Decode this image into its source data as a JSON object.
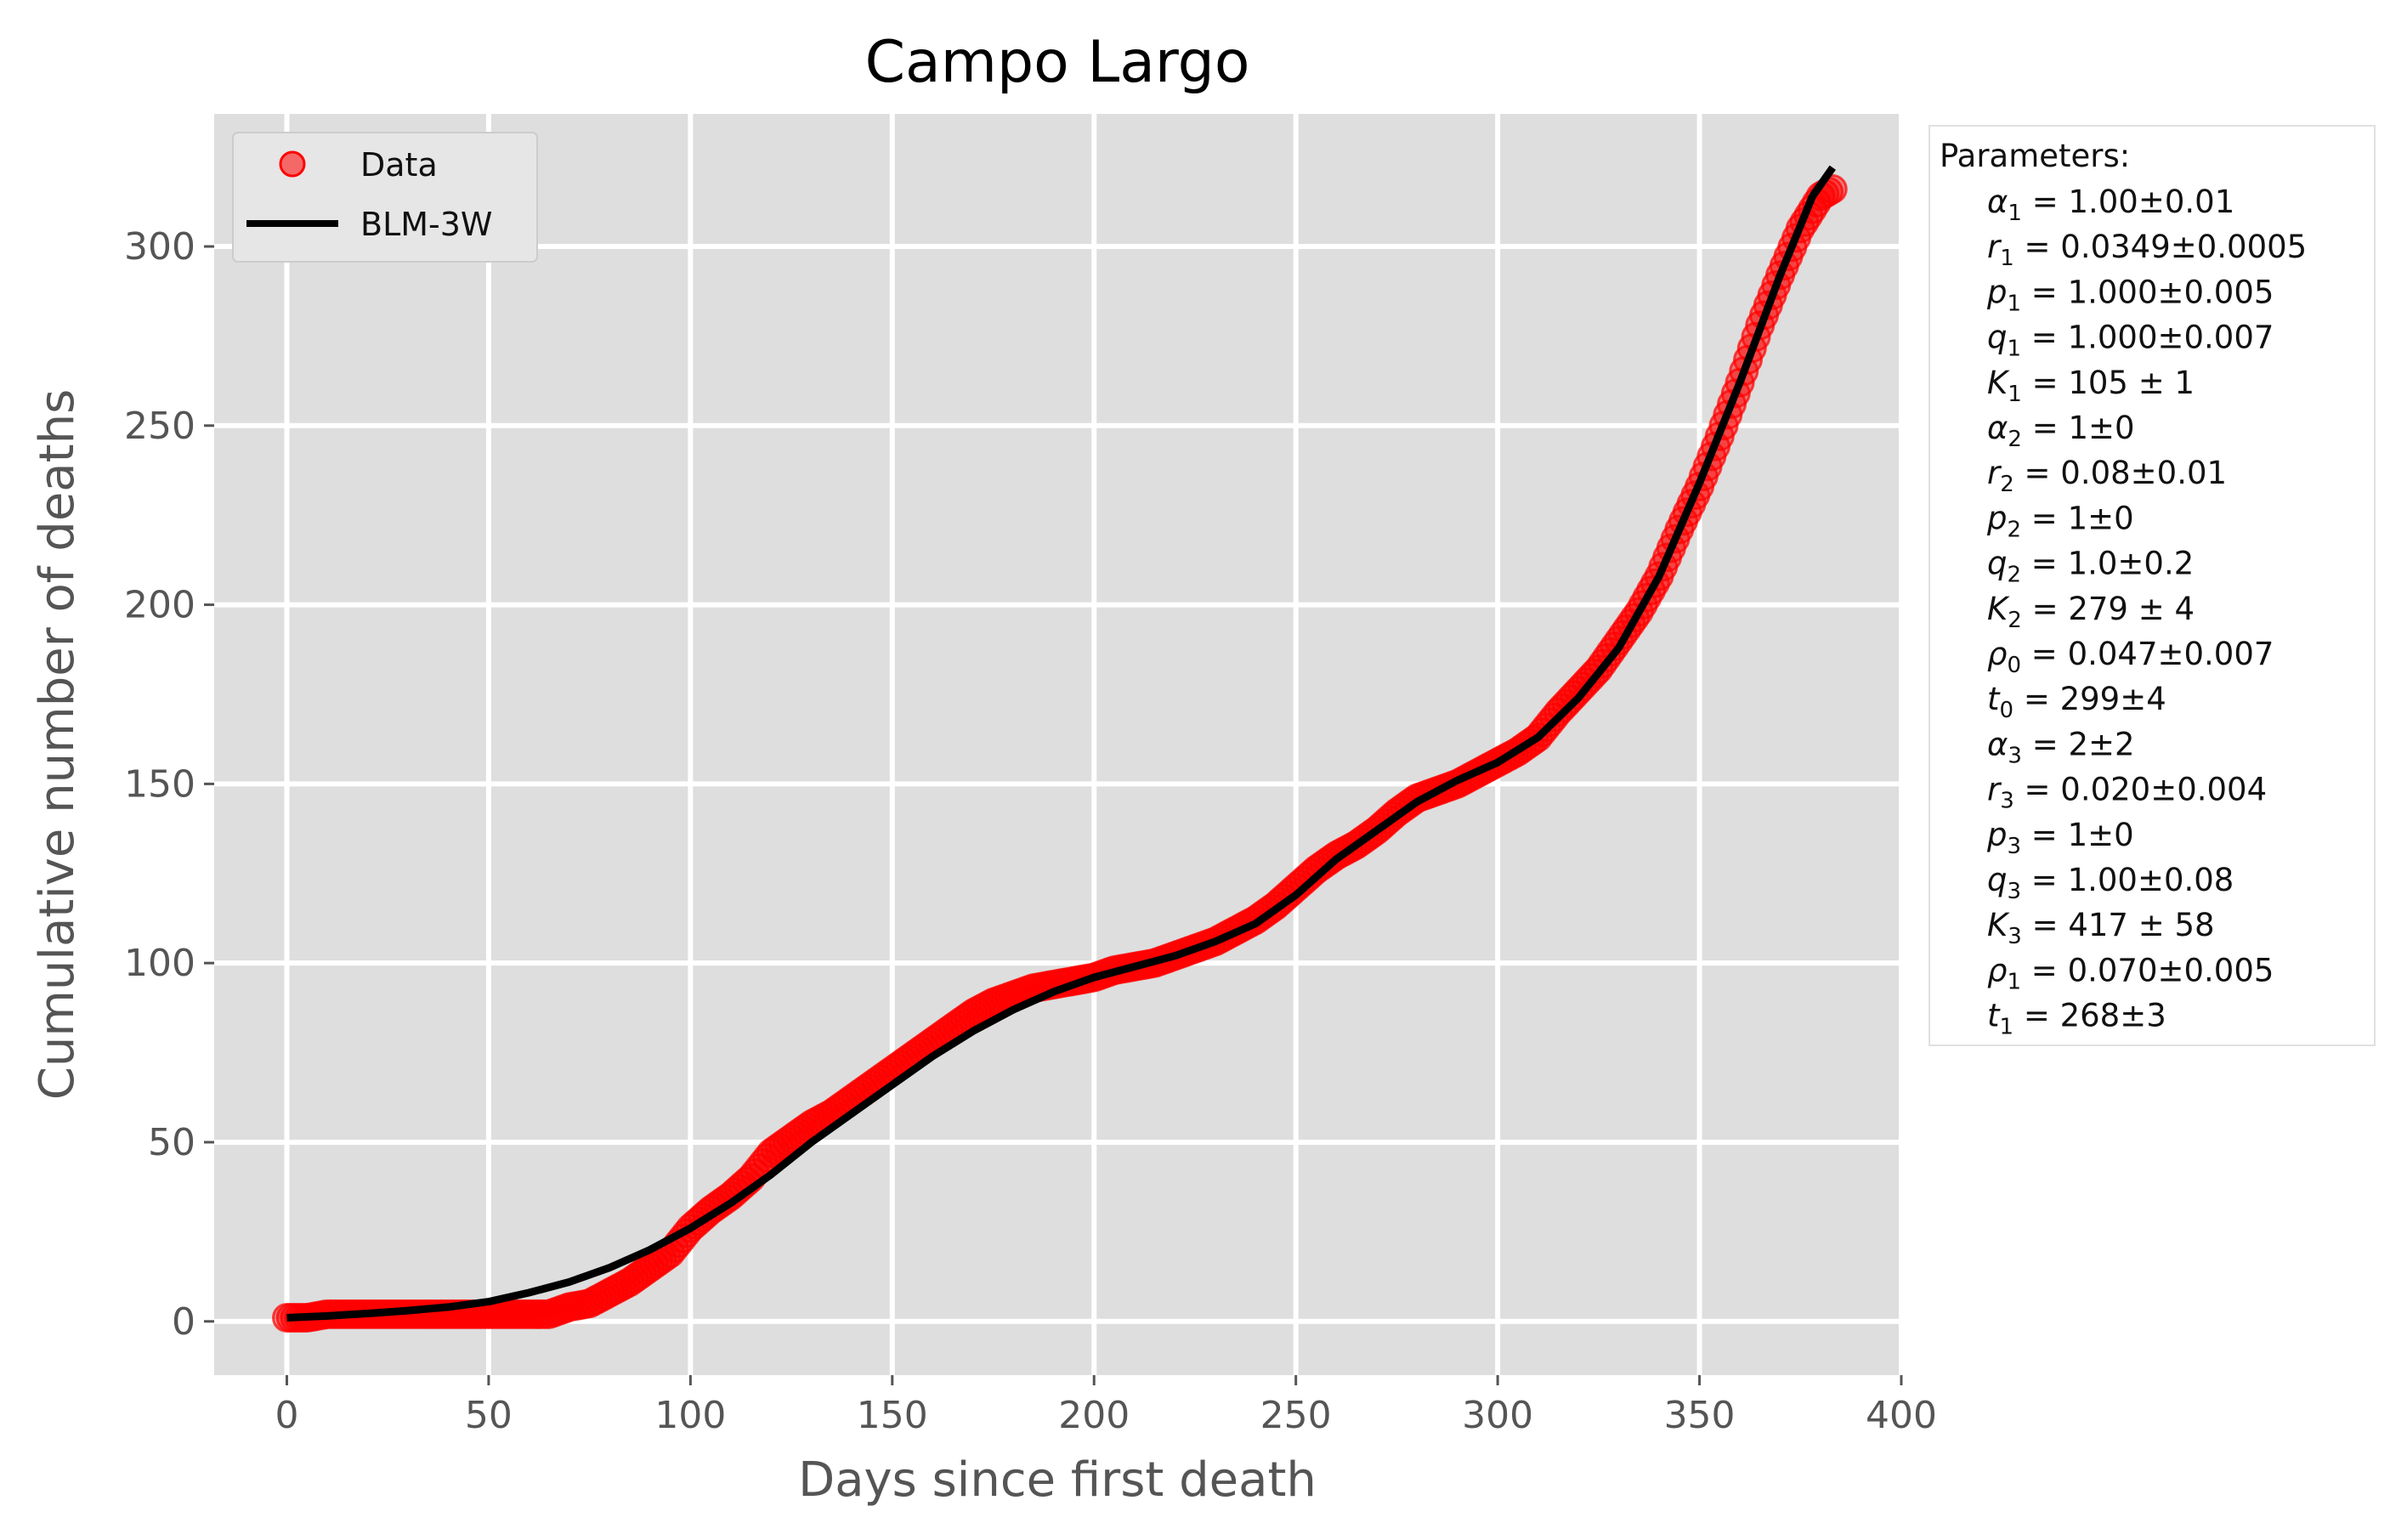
{
  "chart_data": {
    "type": "scatter",
    "title": "Campo Largo",
    "xlabel": "Days since first death",
    "ylabel": "Cumulative number of deaths",
    "xlim": [
      -18,
      400
    ],
    "ylim": [
      -15,
      337
    ],
    "xticks": [
      "0",
      "50",
      "100",
      "150",
      "200",
      "250",
      "300",
      "350",
      "400"
    ],
    "yticks": [
      "0",
      "50",
      "100",
      "150",
      "200",
      "250",
      "300"
    ],
    "grid": true,
    "legend_position": "top-left",
    "series": [
      {
        "name": "Data",
        "kind": "scatter",
        "color": "#ff0000",
        "points": [
          [
            0,
            1
          ],
          [
            5,
            1
          ],
          [
            10,
            2
          ],
          [
            20,
            2
          ],
          [
            30,
            2
          ],
          [
            40,
            2
          ],
          [
            50,
            2
          ],
          [
            60,
            2
          ],
          [
            65,
            2
          ],
          [
            70,
            4
          ],
          [
            75,
            5
          ],
          [
            80,
            8
          ],
          [
            85,
            11
          ],
          [
            90,
            15
          ],
          [
            95,
            19
          ],
          [
            100,
            26
          ],
          [
            105,
            31
          ],
          [
            110,
            35
          ],
          [
            115,
            40
          ],
          [
            120,
            47
          ],
          [
            125,
            51
          ],
          [
            130,
            55
          ],
          [
            135,
            58
          ],
          [
            140,
            62
          ],
          [
            145,
            66
          ],
          [
            150,
            70
          ],
          [
            155,
            74
          ],
          [
            160,
            78
          ],
          [
            165,
            82
          ],
          [
            170,
            86
          ],
          [
            175,
            89
          ],
          [
            180,
            91
          ],
          [
            185,
            93
          ],
          [
            190,
            94
          ],
          [
            195,
            95
          ],
          [
            200,
            96
          ],
          [
            205,
            98
          ],
          [
            210,
            99
          ],
          [
            215,
            100
          ],
          [
            220,
            102
          ],
          [
            225,
            104
          ],
          [
            230,
            106
          ],
          [
            235,
            109
          ],
          [
            240,
            112
          ],
          [
            245,
            116
          ],
          [
            250,
            121
          ],
          [
            255,
            126
          ],
          [
            260,
            130
          ],
          [
            265,
            133
          ],
          [
            270,
            137
          ],
          [
            275,
            142
          ],
          [
            280,
            146
          ],
          [
            285,
            148
          ],
          [
            290,
            150
          ],
          [
            295,
            153
          ],
          [
            300,
            156
          ],
          [
            305,
            159
          ],
          [
            310,
            163
          ],
          [
            315,
            170
          ],
          [
            320,
            176
          ],
          [
            325,
            182
          ],
          [
            330,
            190
          ],
          [
            335,
            198
          ],
          [
            340,
            208
          ],
          [
            345,
            221
          ],
          [
            350,
            233
          ],
          [
            355,
            247
          ],
          [
            360,
            262
          ],
          [
            365,
            278
          ],
          [
            370,
            292
          ],
          [
            375,
            305
          ],
          [
            380,
            314
          ],
          [
            383,
            316
          ]
        ]
      },
      {
        "name": "BLM-3W",
        "kind": "line",
        "color": "#000000",
        "points": [
          [
            0,
            1
          ],
          [
            10,
            1.5
          ],
          [
            20,
            2.2
          ],
          [
            30,
            3
          ],
          [
            40,
            4
          ],
          [
            50,
            5.5
          ],
          [
            60,
            8
          ],
          [
            70,
            11
          ],
          [
            80,
            15
          ],
          [
            90,
            20
          ],
          [
            100,
            26
          ],
          [
            110,
            33
          ],
          [
            120,
            41
          ],
          [
            130,
            50
          ],
          [
            140,
            58
          ],
          [
            150,
            66
          ],
          [
            160,
            74
          ],
          [
            170,
            81
          ],
          [
            180,
            87
          ],
          [
            190,
            92
          ],
          [
            200,
            96
          ],
          [
            210,
            99
          ],
          [
            220,
            102
          ],
          [
            230,
            106
          ],
          [
            240,
            111
          ],
          [
            250,
            119
          ],
          [
            260,
            129
          ],
          [
            270,
            137
          ],
          [
            280,
            145
          ],
          [
            290,
            151
          ],
          [
            300,
            156
          ],
          [
            310,
            163
          ],
          [
            320,
            174
          ],
          [
            330,
            188
          ],
          [
            340,
            208
          ],
          [
            350,
            234
          ],
          [
            360,
            262
          ],
          [
            370,
            292
          ],
          [
            378,
            314
          ],
          [
            383,
            322
          ]
        ]
      }
    ],
    "parameters_title": "Parameters:",
    "parameters": [
      {
        "sym": "α",
        "sub": "1",
        "val": "1.00±0.01"
      },
      {
        "sym": "r",
        "sub": "1",
        "val": "0.0349±0.0005"
      },
      {
        "sym": "p",
        "sub": "1",
        "val": "1.000±0.005"
      },
      {
        "sym": "q",
        "sub": "1",
        "val": "1.000±0.007"
      },
      {
        "sym": "K",
        "sub": "1",
        "val": "105 ± 1"
      },
      {
        "sym": "α",
        "sub": "2",
        "val": "1±0"
      },
      {
        "sym": "r",
        "sub": "2",
        "val": "0.08±0.01"
      },
      {
        "sym": "p",
        "sub": "2",
        "val": "1±0"
      },
      {
        "sym": "q",
        "sub": "2",
        "val": "1.0±0.2"
      },
      {
        "sym": "K",
        "sub": "2",
        "val": "279 ± 4"
      },
      {
        "sym": "ρ",
        "sub": "0",
        "val": "0.047±0.007"
      },
      {
        "sym": "t",
        "sub": "0",
        "val": "299±4"
      },
      {
        "sym": "α",
        "sub": "3",
        "val": "2±2"
      },
      {
        "sym": "r",
        "sub": "3",
        "val": "0.020±0.004"
      },
      {
        "sym": "p",
        "sub": "3",
        "val": "1±0"
      },
      {
        "sym": "q",
        "sub": "3",
        "val": "1.00±0.08"
      },
      {
        "sym": "K",
        "sub": "3",
        "val": "417 ± 58"
      },
      {
        "sym": "ρ",
        "sub": "1",
        "val": "0.070±0.005"
      },
      {
        "sym": "t",
        "sub": "1",
        "val": "268±3"
      }
    ]
  },
  "colors": {
    "plot_background": "#dedede",
    "grid": "#ffffff",
    "data_marker": "#ff0000",
    "fit_line": "#000000"
  }
}
